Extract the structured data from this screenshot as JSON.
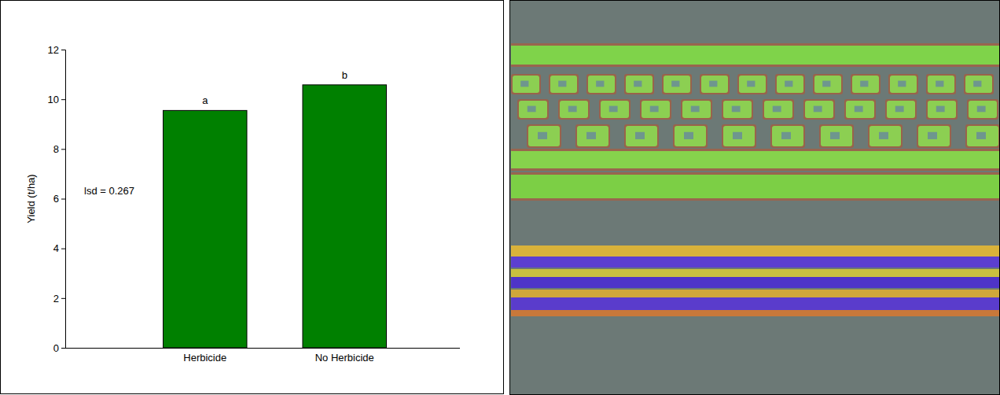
{
  "chart_data": {
    "type": "bar",
    "categories": [
      "Herbicide",
      "No Herbicide"
    ],
    "values": [
      9.55,
      10.58
    ],
    "color": "#008000",
    "ylim": [
      0,
      12
    ],
    "yticks": [
      0,
      2,
      4,
      6,
      8,
      10,
      12
    ],
    "y_label": "Yield (t/ha)",
    "significance_letters": [
      "a",
      "b"
    ],
    "annotation": "lsd = 0.267",
    "grid": false
  }
}
